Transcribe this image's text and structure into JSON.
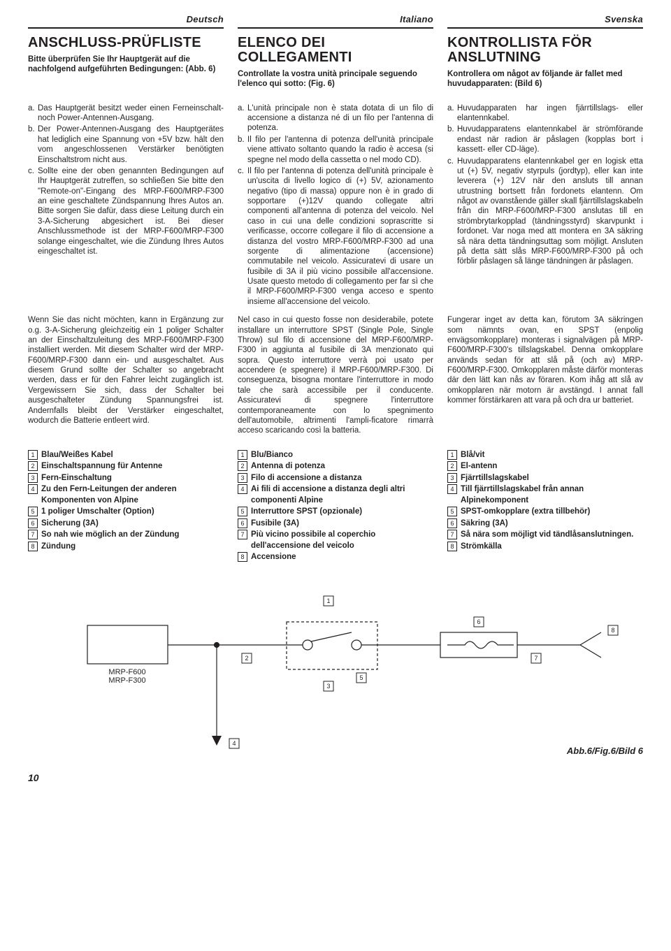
{
  "langs": [
    "Deutsch",
    "Italiano",
    "Svenska"
  ],
  "headers": [
    {
      "title": "ANSCHLUSS-PRÜFLISTE",
      "sub": "Bitte überprüfen Sie Ihr Hauptgerät auf die nachfolgend aufgeführten Bedingungen: (Abb. 6)"
    },
    {
      "title": "ELENCO DEI COLLEGAMENTI",
      "sub": "Controllate la vostra unità principale seguendo l'elenco qui sotto: (Fig. 6)"
    },
    {
      "title": "KONTROLLISTA FÖR ANSLUTNING",
      "sub": "Kontrollera om något av följande är fallet med huvudapparaten: (Bild 6)"
    }
  ],
  "abc": [
    [
      {
        "k": "a.",
        "t": "Das Hauptgerät besitzt weder einen Ferneinschalt- noch Power-Antennen-Ausgang."
      },
      {
        "k": "b.",
        "t": "Der Power-Antennen-Ausgang des Hauptgerätes hat lediglich eine Spannung von +5V bzw. hält den vom angeschlossenen Verstärker benötigten Einschaltstrom nicht aus."
      },
      {
        "k": "c.",
        "t": "Sollte eine der oben genannten Bedingungen auf Ihr Hauptgerät zutreffen, so schließen Sie bitte den \"Remote-on\"-Eingang des MRP-F600/MRP-F300 an eine geschaltete Zündspannung Ihres Autos an. Bitte sorgen Sie dafür, dass diese Leitung durch ein 3-A-Sicherung abgesichert ist. Bei dieser Anschlussmethode ist der MRP-F600/MRP-F300 solange eingeschaltet, wie die Zündung Ihres Autos eingeschaltet ist."
      }
    ],
    [
      {
        "k": "a.",
        "t": "L'unità principale non è stata dotata di un filo di accensione a distanza né di un filo per l'antenna di potenza."
      },
      {
        "k": "b.",
        "t": "Il filo per l'antenna di potenza dell'unità principale viene attivato soltanto quando la radio è accesa (si spegne nel modo della cassetta o nel modo CD)."
      },
      {
        "k": "c.",
        "t": "Il filo per l'antenna di potenza dell'unità principale è un'uscita di livello logico di (+) 5V, azionamento negativo (tipo di massa) oppure non è in grado di sopportare (+)12V quando collegate altri componenti all'antenna di potenza del veicolo. Nel caso in cui una delle condizioni soprascritte si verificasse, occorre collegare il filo di accensione a distanza del vostro MRP-F600/MRP-F300 ad una sorgente di alimentazione (accensione) commutabile nel veicolo. Assicuratevi di usare un fusibile di 3A il più vicino possibile all'accensione. Usate questo metodo di collegamento per far sì che il MRP-F600/MRP-F300 venga acceso e spento insieme all'accensione del veicolo."
      }
    ],
    [
      {
        "k": "a.",
        "t": "Huvudapparaten har ingen fjärrtillslags- eller elantennkabel."
      },
      {
        "k": "b.",
        "t": "Huvudapparatens elantennkabel är strömförande endast när radion är påslagen (kopplas bort i kassett- eller CD-läge)."
      },
      {
        "k": "c.",
        "t": "Huvudapparatens elantennkabel ger en logisk etta ut (+) 5V, negativ styrpuls (jordtyp), eller kan inte leverera (+) 12V när den ansluts till annan utrustning bortsett från fordonets elantenn. Om något av ovanstående gäller skall fjärrtillslagskabeln från din MRP-F600/MRP-F300 anslutas till en strömbrytarkopplad (tändningsstyrd) skarvpunkt i fordonet. Var noga med att montera en 3A säkring så nära detta tändningsuttag som möjligt. Ansluten på detta sätt slås MRP-F600/MRP-F300 på och förblir påslagen så länge tändningen är påslagen."
      }
    ]
  ],
  "paras2": [
    "Wenn Sie das nicht möchten, kann in Ergänzung zur o.g. 3-A-Sicherung gleichzeitig ein 1 poliger Schalter an der Einschaltzuleitung des MRP-F600/MRP-F300 installiert werden. Mit diesem Schalter wird der MRP-F600/MRP-F300 dann ein- und ausgeschaltet. Aus diesem Grund sollte der Schalter so angebracht werden, dass er für den Fahrer leicht zugänglich ist. Vergewissern Sie sich, dass der Schalter bei ausgeschalteter Zündung Spannungsfrei ist. Andernfalls bleibt der Verstärker eingeschaltet, wodurch die Batterie entleert wird.",
    "Nel caso in cui questo fosse non desiderabile, potete installare un interruttore SPST (Single Pole, Single Throw) sul filo di accensione del MRP-F600/MRP-F300 in aggiunta al fusibile di 3A menzionato qui sopra. Questo interruttore verrà poi usato per accendere (e spegnere) il MRP-F600/MRP-F300. Di conseguenza, bisogna montare l'interruttore in modo tale che sarà accessibile per il conducente. Assicuratevi di spegnere l'interruttore contemporaneamente con lo spegnimento dell'automobile, altrimenti l'ampli-ficatore rimarrà acceso scaricando così la batteria.",
    "Fungerar inget av detta kan, förutom 3A säkringen som nämnts ovan, en SPST (enpolig envägsomkopplare) monteras i signalvägen på MRP-F600/MRP-F300's tillslagskabel. Denna omkopplare används sedan för att slå på (och av) MRP-F600/MRP-F300. Omkopplaren måste därför monteras där den lätt kan nås av föraren. Kom ihåg att slå av omkopplaren när motorn är avstängd. I annat fall kommer förstärkaren att vara på och dra ur batteriet."
  ],
  "numlists": [
    [
      "Blau/Weißes Kabel",
      "Einschaltspannung für Antenne",
      "Fern-Einschaltung",
      "Zu den Fern-Leitungen der anderen Komponenten von Alpine",
      "1 poliger Umschalter (Option)",
      "Sicherung (3A)",
      "So nah wie möglich an der Zündung",
      "Zündung"
    ],
    [
      "Blu/Bianco",
      "Antenna di potenza",
      "Filo di accensione a distanza",
      "Ai fili di accensione a distanza degli altri componenti Alpine",
      "Interruttore SPST (opzionale)",
      "Fusibile (3A)",
      "Più vicino possibile al coperchio dell'accensione del veicolo",
      "Accensione"
    ],
    [
      "Blå/vit",
      "El-antenn",
      "Fjärrtillslagskabel",
      "Till fjärrtillslagskabel från annan Alpinekomponent",
      "SPST-omkopplare (extra tillbehör)",
      "Säkring (3A)",
      "Så nära som möjligt vid tändlåsanslutningen.",
      "Strömkälla"
    ]
  ],
  "diagram": {
    "mrp1": "MRP-F600",
    "mrp2": "MRP-F300",
    "caption": "Abb.6/Fig.6/Bild 6",
    "labels": [
      "1",
      "2",
      "3",
      "4",
      "5",
      "6",
      "7",
      "8"
    ]
  },
  "pageNum": "10"
}
